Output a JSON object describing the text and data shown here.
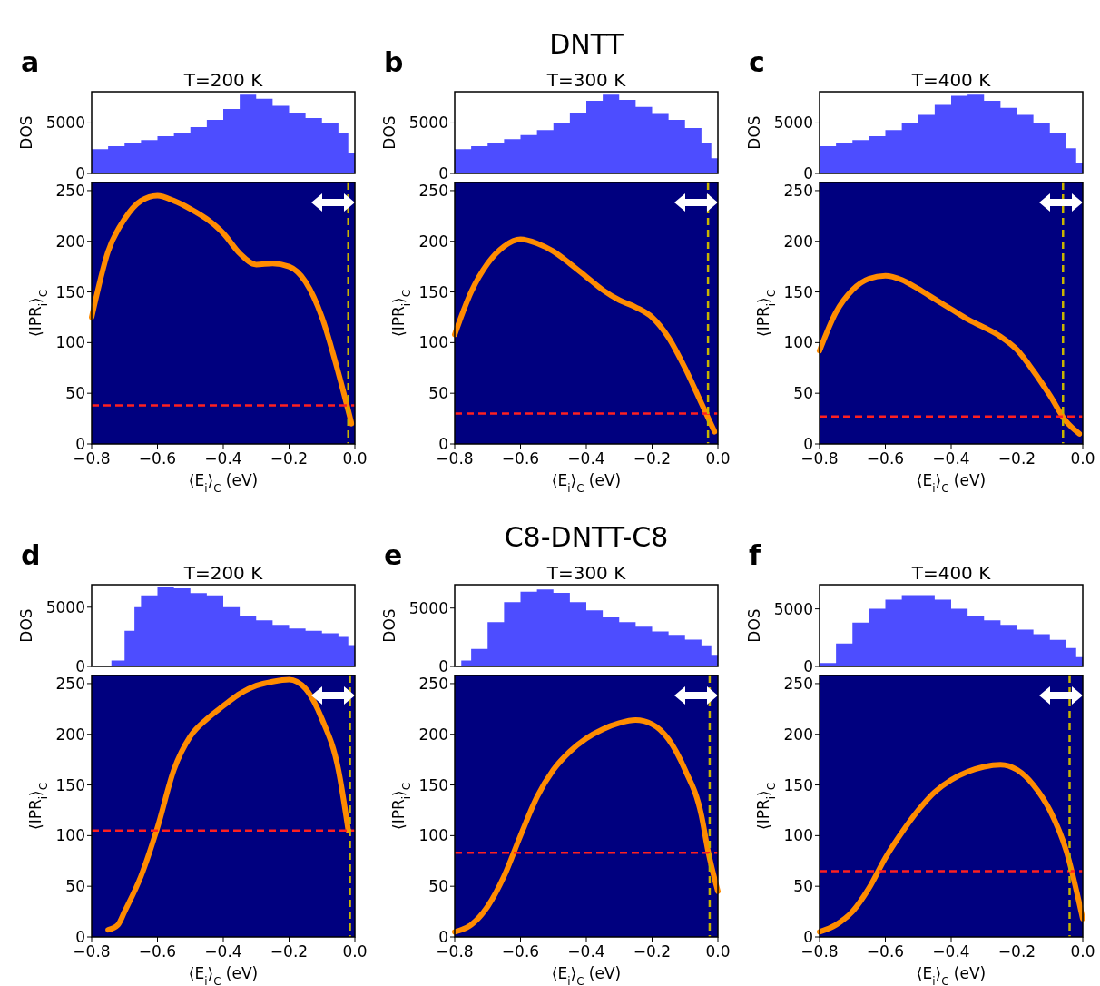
{
  "chart_data": [
    {
      "type": "area",
      "title": "T=200 K",
      "ylabel": "DOS",
      "annotations": [
        "a"
      ],
      "tick_labels": "y",
      "xlim": [
        -0.8,
        0
      ],
      "ylim": [
        0,
        8100
      ],
      "yticks": [
        0,
        5000
      ],
      "color": "#4d4dff",
      "x": [
        -0.8,
        -0.75,
        -0.7,
        -0.65,
        -0.6,
        -0.55,
        -0.5,
        -0.45,
        -0.4,
        -0.35,
        -0.3,
        -0.25,
        -0.2,
        -0.15,
        -0.1,
        -0.05,
        -0.02,
        0
      ],
      "values": [
        2400,
        2700,
        3000,
        3300,
        3700,
        4000,
        4600,
        5300,
        6400,
        7800,
        7400,
        6700,
        6000,
        5500,
        5000,
        4000,
        2000,
        800
      ]
    },
    {
      "type": "line",
      "xlabel": "⟨E$_{i}$⟩$_{C}$ (eV)",
      "ylabel": "⟨IPR$_{i}$⟩$_{C}$",
      "xlim": [
        -0.8,
        0
      ],
      "xticks": [
        {
          "value": -0.8,
          "label": "−0.8"
        },
        {
          "value": -0.6,
          "label": "−0.6"
        },
        {
          "value": -0.4,
          "label": "−0.4"
        },
        {
          "value": -0.2,
          "label": "−0.2"
        },
        {
          "value": 0,
          "label": "0.0"
        }
      ],
      "ylim": [
        0,
        258
      ],
      "yticks": [
        0,
        50,
        100,
        150,
        200,
        250
      ],
      "x": [
        -0.8,
        -0.75,
        -0.7,
        -0.65,
        -0.6,
        -0.55,
        -0.5,
        -0.45,
        -0.4,
        -0.35,
        -0.3,
        -0.25,
        -0.2,
        -0.15,
        -0.1,
        -0.05,
        -0.01
      ],
      "series": [
        {
          "color": "#ff8c00",
          "values": [
            125,
            190,
            222,
            240,
            245,
            240,
            232,
            222,
            208,
            188,
            177,
            178,
            175,
            160,
            125,
            70,
            20
          ]
        }
      ],
      "ref_lines": [
        {
          "axis": "y",
          "value": 38,
          "color": "#ff2020",
          "line_style": "dashed"
        },
        {
          "axis": "x",
          "value": -0.02,
          "color": "#c8b400",
          "line_style": "dashed"
        }
      ]
    },
    {
      "type": "area",
      "title": "T=300 K",
      "ylabel": "DOS",
      "annotations": [
        "b",
        "DNTT"
      ],
      "tick_labels": "y",
      "xlim": [
        -0.8,
        0
      ],
      "ylim": [
        0,
        8100
      ],
      "yticks": [
        0,
        5000
      ],
      "color": "#4d4dff",
      "x": [
        -0.8,
        -0.75,
        -0.7,
        -0.65,
        -0.6,
        -0.55,
        -0.5,
        -0.45,
        -0.4,
        -0.35,
        -0.3,
        -0.25,
        -0.2,
        -0.15,
        -0.1,
        -0.05,
        -0.02,
        0
      ],
      "values": [
        2400,
        2700,
        3000,
        3400,
        3800,
        4300,
        5000,
        6000,
        7200,
        7800,
        7300,
        6600,
        5900,
        5300,
        4500,
        3000,
        1500,
        300
      ]
    },
    {
      "type": "line",
      "xlabel": "⟨E$_{i}$⟩$_{C}$ (eV)",
      "ylabel": "⟨IPR$_{i}$⟩$_{C}$",
      "xlim": [
        -0.8,
        0
      ],
      "xticks": [
        {
          "value": -0.8,
          "label": "−0.8"
        },
        {
          "value": -0.6,
          "label": "−0.6"
        },
        {
          "value": -0.4,
          "label": "−0.4"
        },
        {
          "value": -0.2,
          "label": "−0.2"
        },
        {
          "value": 0,
          "label": "0.0"
        }
      ],
      "ylim": [
        0,
        258
      ],
      "yticks": [
        0,
        50,
        100,
        150,
        200,
        250
      ],
      "x": [
        -0.8,
        -0.75,
        -0.7,
        -0.65,
        -0.6,
        -0.55,
        -0.5,
        -0.45,
        -0.4,
        -0.35,
        -0.3,
        -0.25,
        -0.2,
        -0.15,
        -0.1,
        -0.05,
        -0.01
      ],
      "series": [
        {
          "color": "#ff8c00",
          "values": [
            108,
            150,
            178,
            195,
            202,
            198,
            190,
            178,
            165,
            152,
            142,
            135,
            125,
            105,
            75,
            40,
            12
          ]
        }
      ],
      "ref_lines": [
        {
          "axis": "y",
          "value": 30,
          "color": "#ff2020",
          "line_style": "dashed"
        },
        {
          "axis": "x",
          "value": -0.03,
          "color": "#c8b400",
          "line_style": "dashed"
        }
      ]
    },
    {
      "type": "area",
      "title": "T=400 K",
      "ylabel": "DOS",
      "annotations": [
        "c"
      ],
      "tick_labels": "y",
      "xlim": [
        -0.8,
        0
      ],
      "ylim": [
        0,
        8100
      ],
      "yticks": [
        0,
        5000
      ],
      "color": "#4d4dff",
      "x": [
        -0.8,
        -0.75,
        -0.7,
        -0.65,
        -0.6,
        -0.55,
        -0.5,
        -0.45,
        -0.4,
        -0.35,
        -0.3,
        -0.25,
        -0.2,
        -0.15,
        -0.1,
        -0.05,
        -0.02,
        0
      ],
      "values": [
        2700,
        3000,
        3300,
        3700,
        4300,
        5000,
        5800,
        6800,
        7700,
        7800,
        7200,
        6500,
        5800,
        5000,
        4000,
        2500,
        1000,
        300
      ]
    },
    {
      "type": "line",
      "xlabel": "⟨E$_{i}$⟩$_{C}$ (eV)",
      "ylabel": "⟨IPR$_{i}$⟩$_{C}$",
      "xlim": [
        -0.8,
        0
      ],
      "xticks": [
        {
          "value": -0.8,
          "label": "−0.8"
        },
        {
          "value": -0.6,
          "label": "−0.6"
        },
        {
          "value": -0.4,
          "label": "−0.4"
        },
        {
          "value": -0.2,
          "label": "−0.2"
        },
        {
          "value": 0,
          "label": "0.0"
        }
      ],
      "ylim": [
        0,
        258
      ],
      "yticks": [
        0,
        50,
        100,
        150,
        200,
        250
      ],
      "x": [
        -0.8,
        -0.75,
        -0.7,
        -0.65,
        -0.6,
        -0.55,
        -0.5,
        -0.45,
        -0.4,
        -0.35,
        -0.3,
        -0.25,
        -0.2,
        -0.15,
        -0.1,
        -0.05,
        -0.01
      ],
      "series": [
        {
          "color": "#ff8c00",
          "values": [
            92,
            130,
            152,
            163,
            166,
            162,
            153,
            143,
            133,
            123,
            115,
            106,
            93,
            72,
            48,
            22,
            10
          ]
        }
      ],
      "ref_lines": [
        {
          "axis": "y",
          "value": 27,
          "color": "#ff2020",
          "line_style": "dashed"
        },
        {
          "axis": "x",
          "value": -0.06,
          "color": "#c8b400",
          "line_style": "dashed"
        }
      ]
    },
    {
      "type": "area",
      "title": "T=200 K",
      "ylabel": "DOS",
      "annotations": [
        "d"
      ],
      "tick_labels": "y",
      "xlim": [
        -0.8,
        0
      ],
      "ylim": [
        0,
        6900
      ],
      "yticks": [
        0,
        5000
      ],
      "color": "#4d4dff",
      "x": [
        -0.8,
        -0.75,
        -0.74,
        -0.7,
        -0.67,
        -0.65,
        -0.6,
        -0.55,
        -0.5,
        -0.45,
        -0.4,
        -0.35,
        -0.3,
        -0.25,
        -0.2,
        -0.15,
        -0.1,
        -0.05,
        -0.02,
        0
      ],
      "values": [
        0,
        0,
        500,
        3000,
        5000,
        6000,
        6700,
        6600,
        6200,
        6000,
        5000,
        4300,
        3900,
        3500,
        3200,
        3000,
        2800,
        2500,
        1800,
        900
      ]
    },
    {
      "type": "line",
      "xlabel": "⟨E$_{i}$⟩$_{C}$ (eV)",
      "ylabel": "⟨IPR$_{i}$⟩$_{C}$",
      "xlim": [
        -0.8,
        0
      ],
      "xticks": [
        {
          "value": -0.8,
          "label": "−0.8"
        },
        {
          "value": -0.6,
          "label": "−0.6"
        },
        {
          "value": -0.4,
          "label": "−0.4"
        },
        {
          "value": -0.2,
          "label": "−0.2"
        },
        {
          "value": 0,
          "label": "0.0"
        }
      ],
      "ylim": [
        0,
        258
      ],
      "yticks": [
        0,
        50,
        100,
        150,
        200,
        250
      ],
      "x": [
        -0.75,
        -0.72,
        -0.7,
        -0.65,
        -0.6,
        -0.55,
        -0.5,
        -0.45,
        -0.4,
        -0.35,
        -0.3,
        -0.25,
        -0.2,
        -0.15,
        -0.1,
        -0.05,
        -0.02
      ],
      "series": [
        {
          "color": "#ff8c00",
          "values": [
            7,
            12,
            25,
            60,
            108,
            165,
            198,
            215,
            228,
            240,
            248,
            252,
            254,
            245,
            215,
            165,
            105
          ]
        }
      ],
      "ref_lines": [
        {
          "axis": "y",
          "value": 105,
          "color": "#ff2020",
          "line_style": "dashed"
        },
        {
          "axis": "x",
          "value": -0.015,
          "color": "#c8b400",
          "line_style": "dashed"
        }
      ]
    },
    {
      "type": "area",
      "title": "T=300 K",
      "ylabel": "DOS",
      "annotations": [
        "e",
        "C8-DNTT-C8"
      ],
      "tick_labels": "y",
      "xlim": [
        -0.8,
        0
      ],
      "ylim": [
        0,
        7000
      ],
      "yticks": [
        0,
        5000
      ],
      "color": "#4d4dff",
      "x": [
        -0.8,
        -0.78,
        -0.75,
        -0.7,
        -0.65,
        -0.6,
        -0.55,
        -0.5,
        -0.45,
        -0.4,
        -0.35,
        -0.3,
        -0.25,
        -0.2,
        -0.15,
        -0.1,
        -0.05,
        -0.02,
        0
      ],
      "values": [
        0,
        500,
        1500,
        3800,
        5500,
        6400,
        6600,
        6300,
        5500,
        4800,
        4200,
        3800,
        3400,
        3000,
        2700,
        2300,
        1800,
        1000,
        300
      ]
    },
    {
      "type": "line",
      "xlabel": "⟨E$_{i}$⟩$_{C}$ (eV)",
      "ylabel": "⟨IPR$_{i}$⟩$_{C}$",
      "xlim": [
        -0.8,
        0
      ],
      "xticks": [
        {
          "value": -0.8,
          "label": "−0.8"
        },
        {
          "value": -0.6,
          "label": "−0.6"
        },
        {
          "value": -0.4,
          "label": "−0.4"
        },
        {
          "value": -0.2,
          "label": "−0.2"
        },
        {
          "value": 0,
          "label": "0.0"
        }
      ],
      "ylim": [
        0,
        258
      ],
      "yticks": [
        0,
        50,
        100,
        150,
        200,
        250
      ],
      "x": [
        -0.8,
        -0.75,
        -0.7,
        -0.65,
        -0.6,
        -0.55,
        -0.5,
        -0.45,
        -0.4,
        -0.35,
        -0.3,
        -0.25,
        -0.2,
        -0.15,
        -0.1,
        -0.05,
        -0.03,
        0
      ],
      "series": [
        {
          "color": "#ff8c00",
          "values": [
            5,
            12,
            30,
            60,
            100,
            138,
            165,
            183,
            196,
            205,
            211,
            214,
            210,
            195,
            165,
            120,
            85,
            45
          ]
        }
      ],
      "ref_lines": [
        {
          "axis": "y",
          "value": 83,
          "color": "#ff2020",
          "line_style": "dashed"
        },
        {
          "axis": "x",
          "value": -0.025,
          "color": "#c8b400",
          "line_style": "dashed"
        }
      ]
    },
    {
      "type": "area",
      "title": "T=400 K",
      "ylabel": "DOS",
      "annotations": [
        "f"
      ],
      "tick_labels": "y",
      "xlim": [
        -0.8,
        0
      ],
      "ylim": [
        0,
        7100
      ],
      "yticks": [
        0,
        5000
      ],
      "color": "#4d4dff",
      "x": [
        -0.8,
        -0.75,
        -0.7,
        -0.65,
        -0.6,
        -0.55,
        -0.5,
        -0.45,
        -0.4,
        -0.35,
        -0.3,
        -0.25,
        -0.2,
        -0.15,
        -0.1,
        -0.05,
        -0.02,
        0
      ],
      "values": [
        300,
        2000,
        3800,
        5000,
        5800,
        6200,
        6200,
        5800,
        5000,
        4400,
        4000,
        3600,
        3200,
        2800,
        2300,
        1600,
        800,
        200
      ]
    },
    {
      "type": "line",
      "xlabel": "⟨E$_{i}$⟩$_{C}$ (eV)",
      "ylabel": "⟨IPR$_{i}$⟩$_{C}$",
      "xlim": [
        -0.8,
        0
      ],
      "xticks": [
        {
          "value": -0.8,
          "label": "−0.8"
        },
        {
          "value": -0.6,
          "label": "−0.6"
        },
        {
          "value": -0.4,
          "label": "−0.4"
        },
        {
          "value": -0.2,
          "label": "−0.2"
        },
        {
          "value": 0,
          "label": "0.0"
        }
      ],
      "ylim": [
        0,
        258
      ],
      "yticks": [
        0,
        50,
        100,
        150,
        200,
        250
      ],
      "x": [
        -0.8,
        -0.75,
        -0.7,
        -0.65,
        -0.6,
        -0.55,
        -0.5,
        -0.45,
        -0.4,
        -0.35,
        -0.3,
        -0.25,
        -0.2,
        -0.15,
        -0.1,
        -0.05,
        0
      ],
      "series": [
        {
          "color": "#ff8c00",
          "values": [
            5,
            12,
            25,
            48,
            78,
            103,
            125,
            143,
            155,
            163,
            168,
            170,
            165,
            150,
            125,
            85,
            18
          ]
        }
      ],
      "ref_lines": [
        {
          "axis": "y",
          "value": 65,
          "color": "#ff2020",
          "line_style": "dashed"
        },
        {
          "axis": "x",
          "value": -0.04,
          "color": "#c8b400",
          "line_style": "dashed"
        }
      ]
    }
  ]
}
